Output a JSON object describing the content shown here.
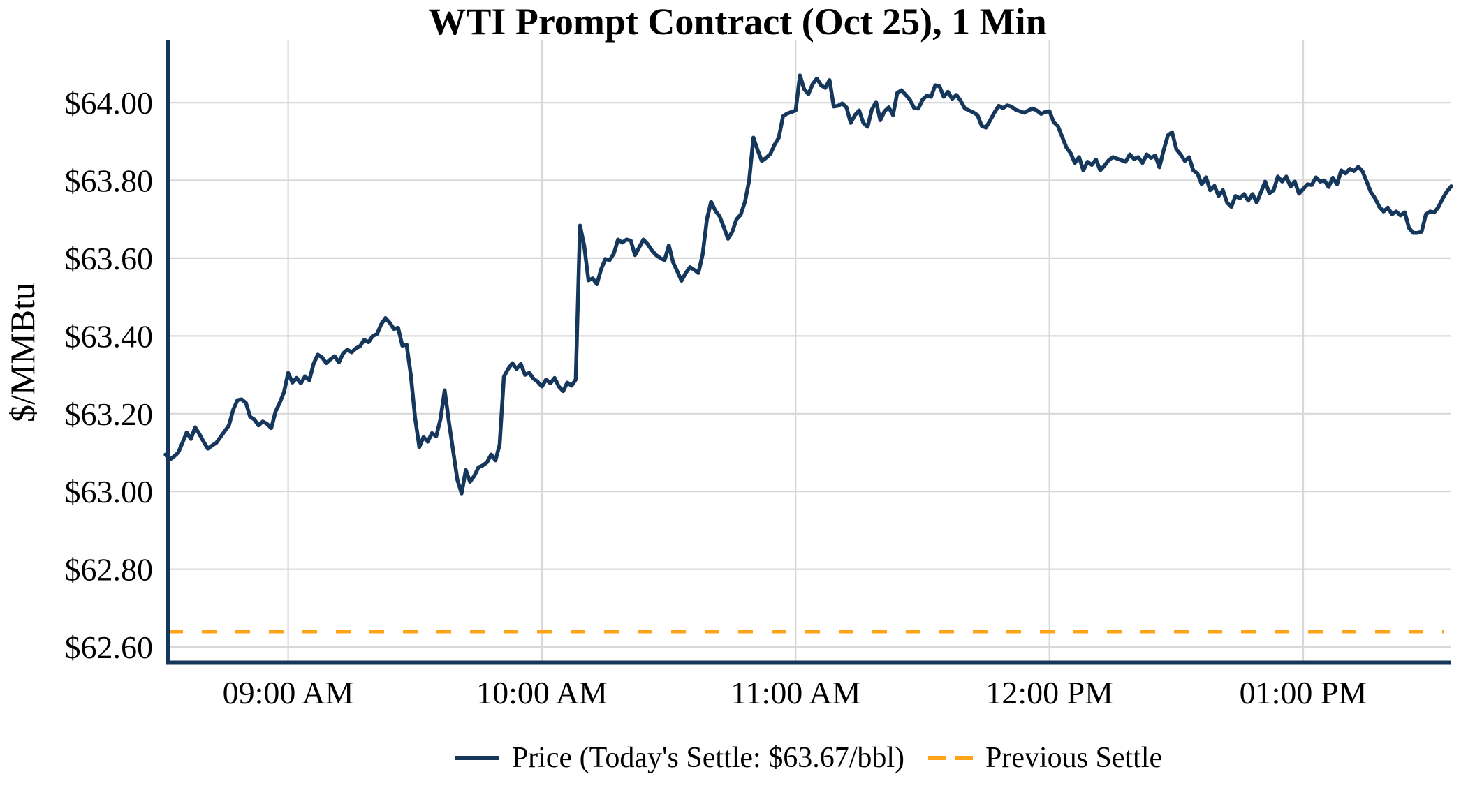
{
  "colors": {
    "price_line": "#16375C",
    "previous_settle": "#FFA319",
    "grid": "#D8D8D8",
    "text": "#000000",
    "background": "#FFFFFF"
  },
  "chart_data": {
    "type": "line",
    "title": "WTI Prompt Contract (Oct 25), 1 Min",
    "xlabel": "",
    "ylabel": "$/MMBtu",
    "grid": true,
    "legend_position": "bottom-center",
    "ylim": [
      62.565,
      64.16
    ],
    "y_tick_values": [
      62.6,
      62.8,
      63.0,
      63.2,
      63.4,
      63.6,
      63.8,
      64.0
    ],
    "y_tick_labels": [
      "$62.60",
      "$62.80",
      "$63.00",
      "$63.20",
      "$63.40",
      "$63.60",
      "$63.80",
      "$64.00"
    ],
    "x_tick_labels": [
      "09:00 AM",
      "10:00 AM",
      "11:00 AM",
      "12:00 PM",
      "01:00 PM"
    ],
    "x_tick_indices": [
      29,
      89,
      149,
      209,
      269
    ],
    "interval_minutes": 1,
    "todays_settle_value": 63.67,
    "previous_settle_value": 62.64,
    "legend": {
      "price_label": "Price (Today's Settle: $63.67/bbl)",
      "previous_settle_label": "Previous Settle"
    },
    "series": [
      {
        "name": "Price",
        "values": [
          63.095,
          63.082,
          63.09,
          63.1,
          63.125,
          63.152,
          63.135,
          63.165,
          63.148,
          63.128,
          63.11,
          63.118,
          63.125,
          63.14,
          63.155,
          63.17,
          63.21,
          63.235,
          63.237,
          63.228,
          63.192,
          63.185,
          63.17,
          63.18,
          63.174,
          63.163,
          63.205,
          63.228,
          63.255,
          63.305,
          63.28,
          63.292,
          63.278,
          63.296,
          63.286,
          63.328,
          63.352,
          63.345,
          63.33,
          63.34,
          63.348,
          63.332,
          63.355,
          63.365,
          63.358,
          63.368,
          63.374,
          63.39,
          63.384,
          63.4,
          63.405,
          63.43,
          63.446,
          63.434,
          63.418,
          63.421,
          63.375,
          63.378,
          63.3,
          63.19,
          63.114,
          63.14,
          63.128,
          63.15,
          63.142,
          63.185,
          63.26,
          63.18,
          63.105,
          63.03,
          62.995,
          63.055,
          63.025,
          63.04,
          63.062,
          63.067,
          63.075,
          63.095,
          63.08,
          63.12,
          63.295,
          63.315,
          63.33,
          63.315,
          63.328,
          63.3,
          63.305,
          63.29,
          63.282,
          63.27,
          63.288,
          63.278,
          63.292,
          63.27,
          63.258,
          63.28,
          63.272,
          63.288,
          63.684,
          63.632,
          63.543,
          63.548,
          63.533,
          63.572,
          63.598,
          63.595,
          63.612,
          63.648,
          63.64,
          63.648,
          63.645,
          63.608,
          63.628,
          63.648,
          63.636,
          63.62,
          63.608,
          63.6,
          63.595,
          63.633,
          63.59,
          63.566,
          63.542,
          63.562,
          63.577,
          63.57,
          63.562,
          63.61,
          63.7,
          63.745,
          63.722,
          63.708,
          63.68,
          63.65,
          63.668,
          63.7,
          63.712,
          63.745,
          63.8,
          63.91,
          63.878,
          63.85,
          63.858,
          63.868,
          63.892,
          63.91,
          63.965,
          63.972,
          63.976,
          63.98,
          64.07,
          64.035,
          64.022,
          64.048,
          64.062,
          64.045,
          64.038,
          64.058,
          63.99,
          63.992,
          63.998,
          63.988,
          63.948,
          63.968,
          63.98,
          63.948,
          63.938,
          63.982,
          64.002,
          63.955,
          63.978,
          63.988,
          63.968,
          64.025,
          64.032,
          64.02,
          64.008,
          63.986,
          63.985,
          64.008,
          64.018,
          64.015,
          64.045,
          64.042,
          64.015,
          64.028,
          64.01,
          64.02,
          64.005,
          63.985,
          63.98,
          63.975,
          63.968,
          63.94,
          63.936,
          63.955,
          63.975,
          63.992,
          63.986,
          63.993,
          63.99,
          63.982,
          63.978,
          63.974,
          63.98,
          63.985,
          63.98,
          63.971,
          63.976,
          63.978,
          63.95,
          63.94,
          63.912,
          63.885,
          63.87,
          63.845,
          63.86,
          63.826,
          63.848,
          63.84,
          63.854,
          63.826,
          63.838,
          63.852,
          63.86,
          63.856,
          63.852,
          63.848,
          63.867,
          63.855,
          63.86,
          63.845,
          63.867,
          63.858,
          63.864,
          63.834,
          63.878,
          63.916,
          63.924,
          63.88,
          63.867,
          63.85,
          63.86,
          63.826,
          63.818,
          63.79,
          63.808,
          63.775,
          63.786,
          63.76,
          63.775,
          63.743,
          63.732,
          63.76,
          63.754,
          63.765,
          63.748,
          63.765,
          63.743,
          63.77,
          63.797,
          63.767,
          63.775,
          63.81,
          63.797,
          63.81,
          63.784,
          63.797,
          63.766,
          63.778,
          63.79,
          63.788,
          63.808,
          63.797,
          63.8,
          63.783,
          63.807,
          63.79,
          63.826,
          63.818,
          63.83,
          63.824,
          63.835,
          63.824,
          63.797,
          63.77,
          63.754,
          63.732,
          63.72,
          63.73,
          63.713,
          63.72,
          63.71,
          63.718,
          63.678,
          63.665,
          63.665,
          63.668,
          63.713,
          63.72,
          63.718,
          63.732,
          63.754,
          63.772,
          63.785
        ]
      }
    ]
  }
}
